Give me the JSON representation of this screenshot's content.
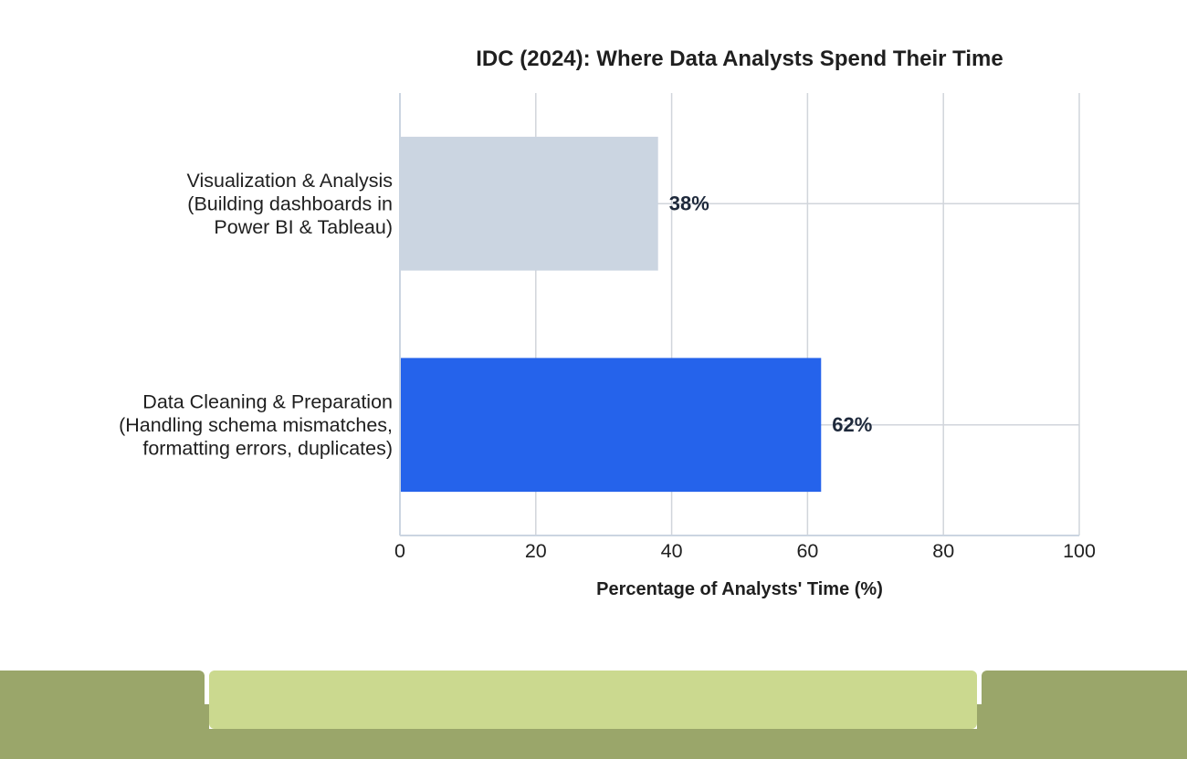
{
  "chart_data": {
    "type": "bar",
    "orientation": "horizontal",
    "title": "IDC (2024): Where Data Analysts Spend Their Time",
    "xlabel": "Percentage of Analysts' Time (%)",
    "ylabel": "",
    "xlim": [
      0,
      100
    ],
    "xticks": [
      0,
      20,
      40,
      60,
      80,
      100
    ],
    "grid": true,
    "categories": [
      {
        "lines": [
          "Visualization & Analysis",
          "(Building dashboards in",
          "Power BI & Tableau)"
        ],
        "value": 38,
        "label": "38%",
        "color": "#cbd5e1"
      },
      {
        "lines": [
          "Data Cleaning & Preparation",
          "(Handling schema mismatches,",
          "formatting errors, duplicates)"
        ],
        "value": 62,
        "label": "62%",
        "color": "#2563eb"
      }
    ]
  },
  "colors": {
    "grid": "#d1d5db",
    "axis": "#cbd5e1",
    "text": "#1f1f1f",
    "value_label": "#1e293b",
    "footer_dark": "#9aa66a",
    "footer_light": "#cbd98f"
  }
}
